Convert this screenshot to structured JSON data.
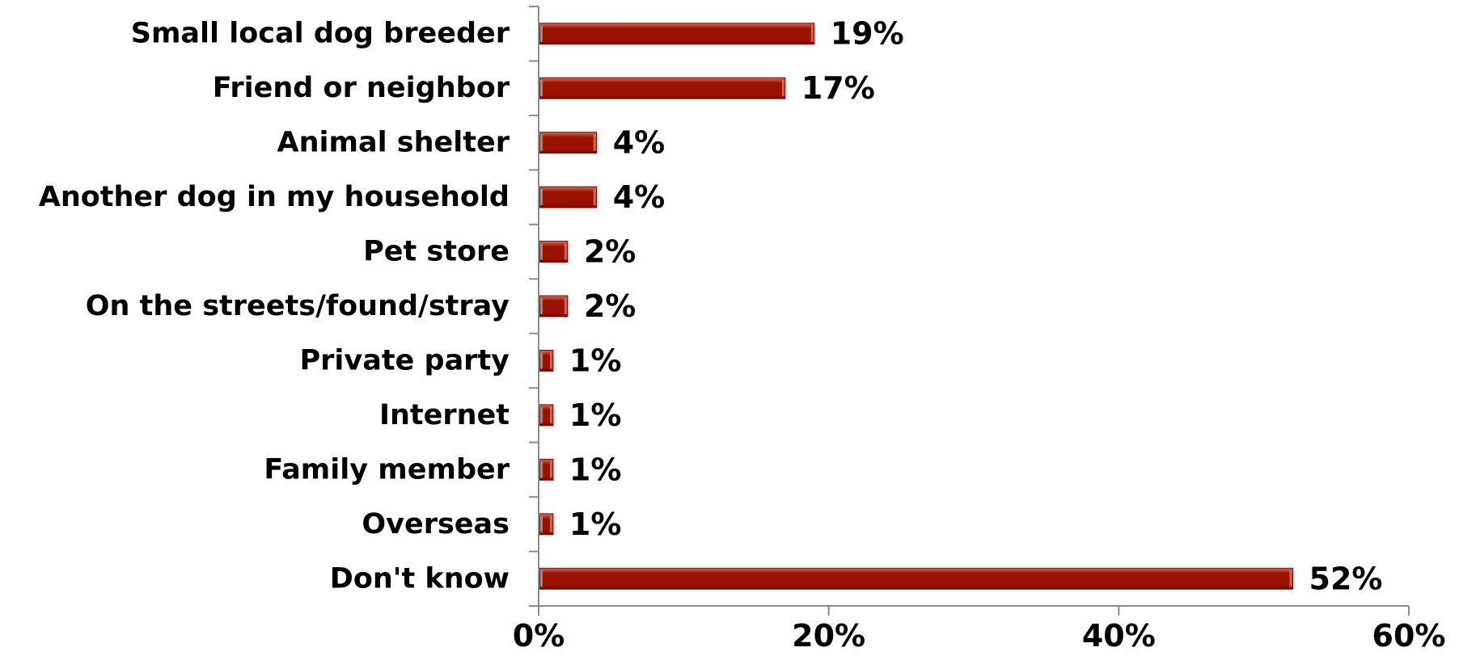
{
  "chart_data": {
    "type": "bar",
    "orientation": "horizontal",
    "categories": [
      "Small local dog breeder",
      "Friend or neighbor",
      "Animal shelter",
      "Another dog in my household",
      "Pet store",
      "On the streets/found/stray",
      "Private party",
      "Internet",
      "Family member",
      "Overseas",
      "Don't know"
    ],
    "values": [
      19,
      17,
      4,
      4,
      2,
      2,
      1,
      1,
      1,
      1,
      52
    ],
    "value_labels": [
      "19%",
      "17%",
      "4%",
      "4%",
      "2%",
      "2%",
      "1%",
      "1%",
      "1%",
      "1%",
      "52%"
    ],
    "x_ticks": [
      0,
      20,
      40,
      60
    ],
    "x_tick_labels": [
      "0%",
      "20%",
      "40%",
      "60%"
    ],
    "xlim": [
      0,
      60
    ],
    "unit": "%",
    "grid": false,
    "legend": "none",
    "bar_color": "#9c1200",
    "bar_highlight_color": "#d96b55",
    "axis_color": "#8c8c8c"
  }
}
